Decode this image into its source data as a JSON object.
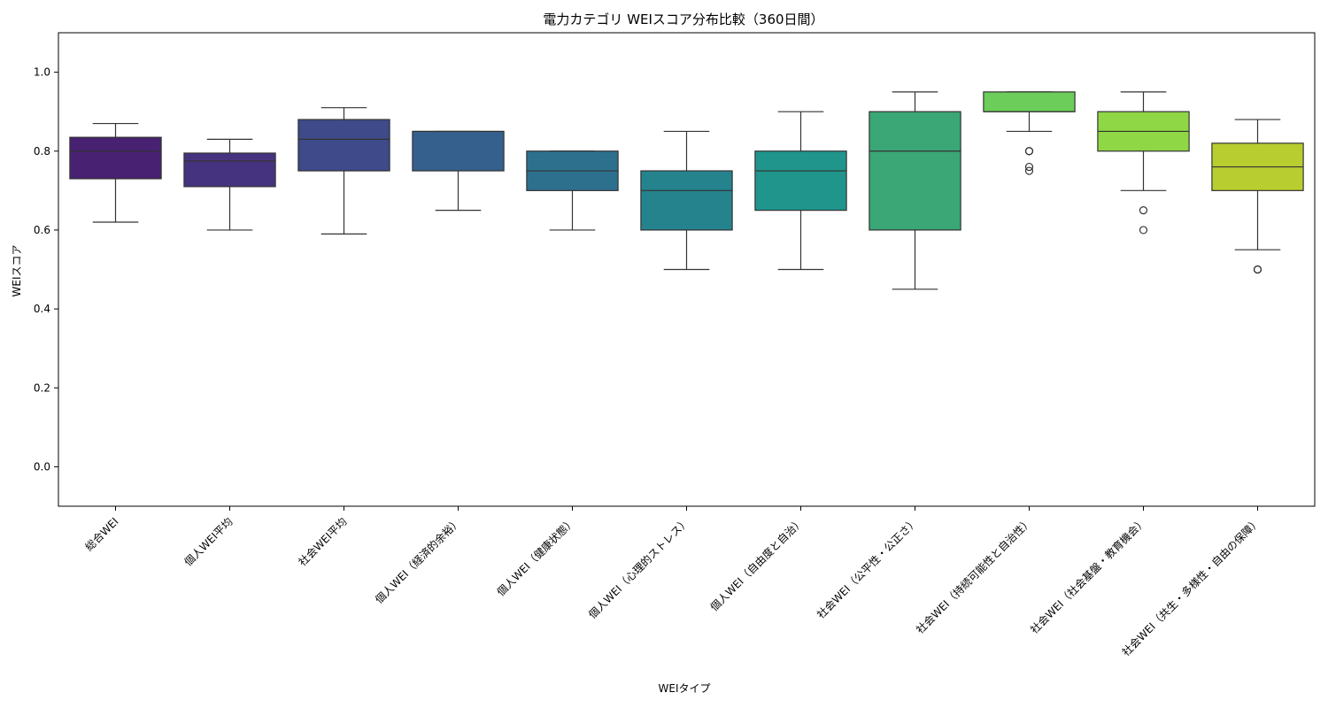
{
  "chart_data": {
    "type": "box",
    "title": "電力カテゴリ WEIスコア分布比較（360日間）",
    "xlabel": "WEIタイプ",
    "ylabel": "WEIスコア",
    "ylim": [
      -0.1,
      1.1
    ],
    "yticks": [
      0.0,
      0.2,
      0.4,
      0.6,
      0.8,
      1.0
    ],
    "ytick_labels": [
      "0.0",
      "0.2",
      "0.4",
      "0.6",
      "0.8",
      "1.0"
    ],
    "grid": false,
    "legend": "none",
    "categories": [
      "総合WEI",
      "個人WEI平均",
      "社会WEI平均",
      "個人WEI（経済的余裕）",
      "個人WEI（健康状態）",
      "個人WEI（心理的ストレス）",
      "個人WEI（自由度と自治）",
      "社会WEI（公平性・公正さ）",
      "社会WEI（持続可能性と自治性）",
      "社会WEI（社会基盤・教育機会）",
      "社会WEI（共生・多様性・自由の保障）"
    ],
    "boxes": [
      {
        "whisker_low": 0.62,
        "q1": 0.73,
        "median": 0.8,
        "q3": 0.835,
        "whisker_high": 0.87,
        "outliers": [],
        "color": "#482172"
      },
      {
        "whisker_low": 0.6,
        "q1": 0.71,
        "median": 0.775,
        "q3": 0.795,
        "whisker_high": 0.83,
        "outliers": [],
        "color": "#46337f"
      },
      {
        "whisker_low": 0.59,
        "q1": 0.75,
        "median": 0.83,
        "q3": 0.88,
        "whisker_high": 0.91,
        "outliers": [],
        "color": "#3e4a89"
      },
      {
        "whisker_low": 0.65,
        "q1": 0.75,
        "median": 0.85,
        "q3": 0.85,
        "whisker_high": 0.85,
        "outliers": [],
        "color": "#35608d"
      },
      {
        "whisker_low": 0.6,
        "q1": 0.7,
        "median": 0.75,
        "q3": 0.8,
        "whisker_high": 0.8,
        "outliers": [],
        "color": "#2d708e"
      },
      {
        "whisker_low": 0.5,
        "q1": 0.6,
        "median": 0.7,
        "q3": 0.75,
        "whisker_high": 0.85,
        "outliers": [],
        "color": "#25838e"
      },
      {
        "whisker_low": 0.5,
        "q1": 0.65,
        "median": 0.75,
        "q3": 0.8,
        "whisker_high": 0.9,
        "outliers": [],
        "color": "#1f958b"
      },
      {
        "whisker_low": 0.45,
        "q1": 0.6,
        "median": 0.8,
        "q3": 0.9,
        "whisker_high": 0.95,
        "outliers": [],
        "color": "#3ba676"
      },
      {
        "whisker_low": 0.85,
        "q1": 0.9,
        "median": 0.9,
        "q3": 0.95,
        "whisker_high": 0.95,
        "outliers": [
          0.8,
          0.8,
          0.76,
          0.75
        ],
        "color": "#6ccd5a"
      },
      {
        "whisker_low": 0.7,
        "q1": 0.8,
        "median": 0.85,
        "q3": 0.9,
        "whisker_high": 0.95,
        "outliers": [
          0.65,
          0.6
        ],
        "color": "#8fd744"
      },
      {
        "whisker_low": 0.55,
        "q1": 0.7,
        "median": 0.76,
        "q3": 0.82,
        "whisker_high": 0.88,
        "outliers": [
          0.5,
          0.5
        ],
        "color": "#b8cd2f"
      }
    ]
  }
}
